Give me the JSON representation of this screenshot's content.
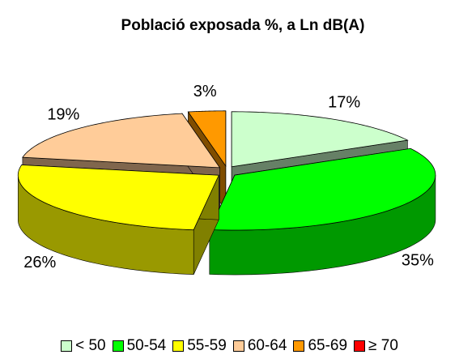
{
  "chart_data": {
    "type": "pie",
    "title": "Població exposada %, a Ln dB(A)",
    "categories": [
      "< 50",
      "50-54",
      "55-59",
      "60-64",
      "65-69",
      "≥ 70"
    ],
    "values": [
      17,
      35,
      26,
      19,
      3,
      0
    ],
    "value_labels": [
      "17%",
      "35%",
      "26%",
      "19%",
      "3%",
      null
    ],
    "colors": [
      "#ccffcc",
      "#00ff00",
      "#ffff00",
      "#ffcc99",
      "#ff9900",
      "#ff0000"
    ],
    "legend": "bottom"
  }
}
